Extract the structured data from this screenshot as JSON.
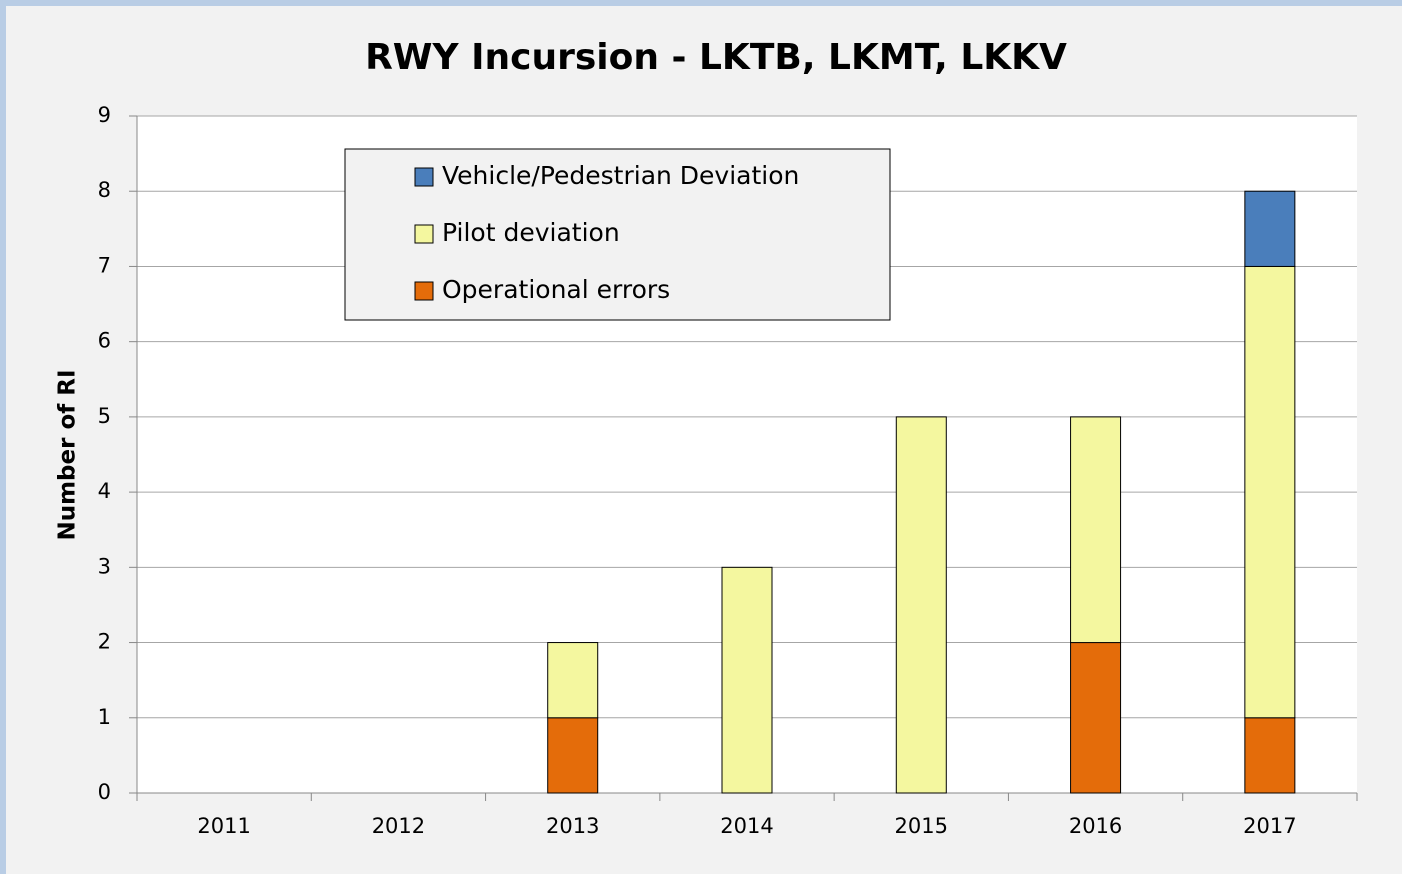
{
  "chart_data": {
    "type": "stacked_bar",
    "title": "RWY Incursion - LKTB, LKMT, LKKV",
    "y_label": "Number of RI",
    "categories": [
      "2011",
      "2012",
      "2013",
      "2014",
      "2015",
      "2016",
      "2017"
    ],
    "series": [
      {
        "name": "Operational errors",
        "color": "#e46c0a",
        "values": [
          0,
          0,
          1,
          0,
          0,
          2,
          1
        ]
      },
      {
        "name": "Pilot deviation",
        "color": "#f4f79f",
        "values": [
          0,
          0,
          1,
          3,
          5,
          3,
          6
        ]
      },
      {
        "name": "Vehicle/Pedestrian Deviation",
        "color": "#4a7ebb",
        "values": [
          0,
          0,
          0,
          0,
          0,
          0,
          1
        ]
      }
    ],
    "ylim": [
      0,
      9
    ],
    "yticks": [
      0,
      1,
      2,
      3,
      4,
      5,
      6,
      7,
      8,
      9
    ],
    "grid": true
  }
}
